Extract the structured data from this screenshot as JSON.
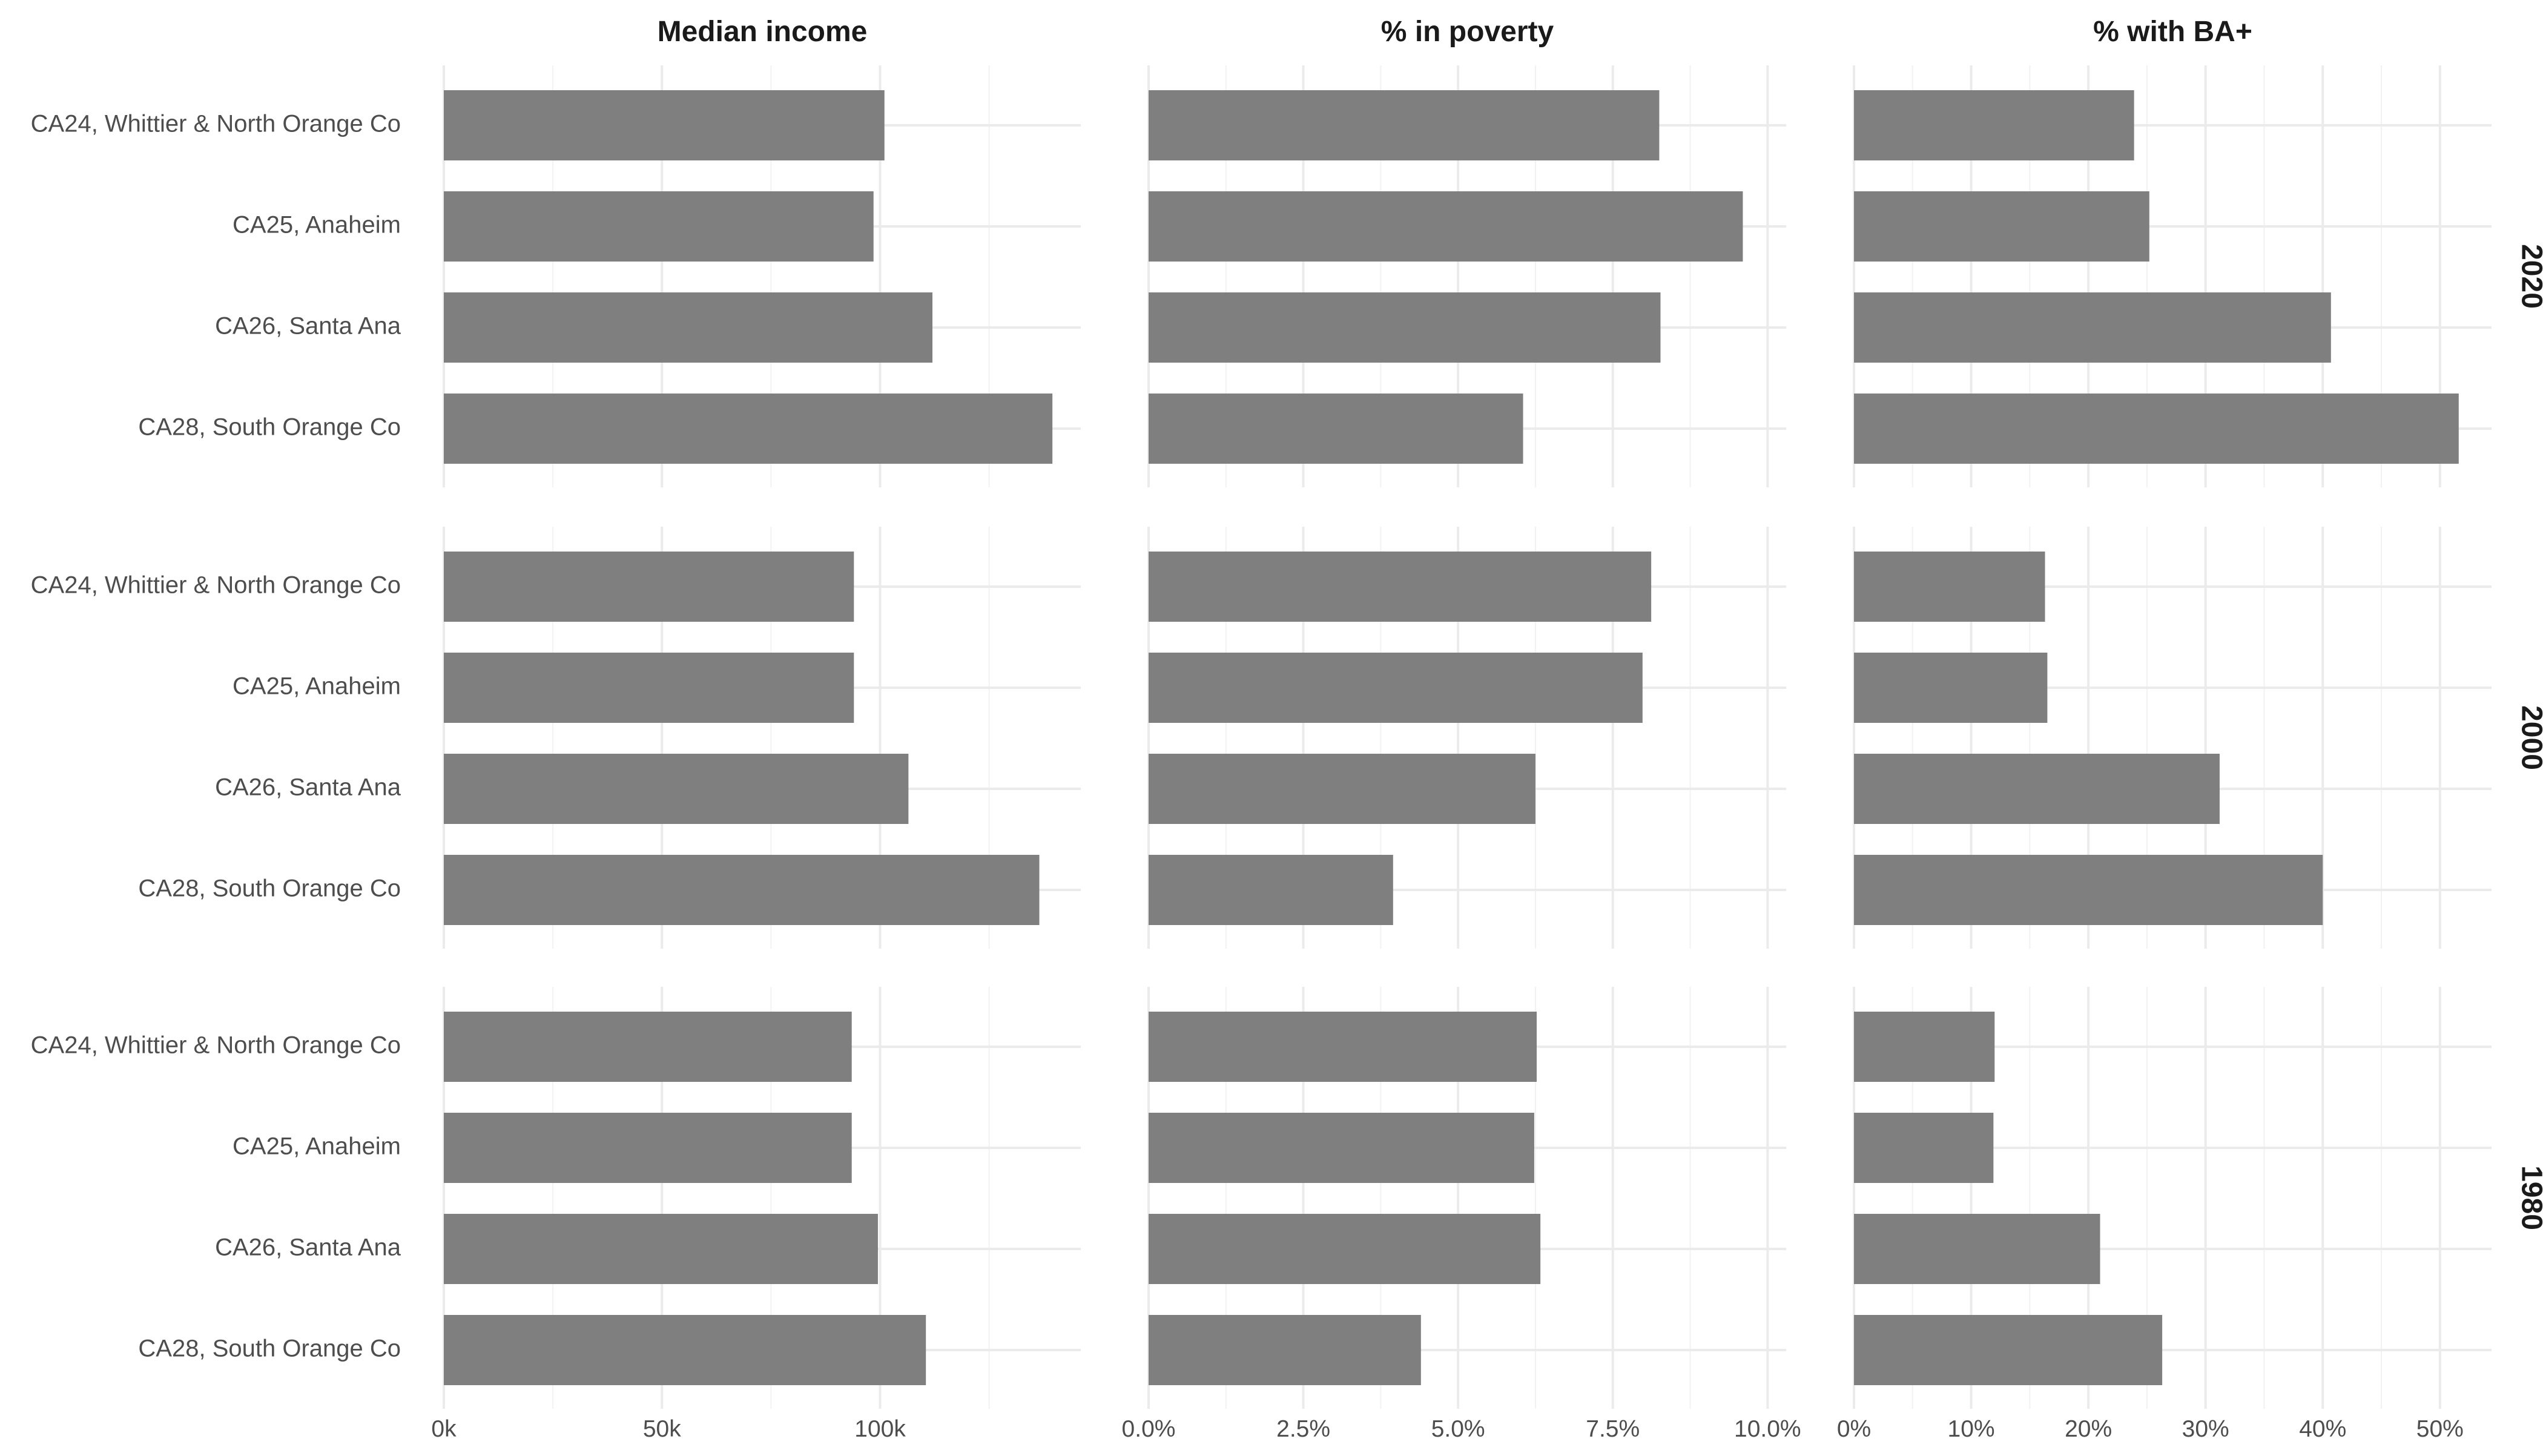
{
  "chart_data": {
    "type": "bar",
    "orientation": "horizontal",
    "facets": {
      "columns": [
        {
          "key": "income",
          "title": "Median income",
          "xlim": [
            0,
            146000
          ],
          "ticks": [
            0,
            50000,
            100000
          ],
          "tick_labels": [
            "0k",
            "50k",
            "100k"
          ]
        },
        {
          "key": "poverty",
          "title": "% in poverty",
          "xlim": [
            0,
            10.3
          ],
          "ticks": [
            0,
            2.5,
            5,
            7.5,
            10
          ],
          "tick_labels": [
            "0.0%",
            "2.5%",
            "5.0%",
            "7.5%",
            "10.0%"
          ]
        },
        {
          "key": "ba",
          "title": "% with BA+",
          "xlim": [
            0,
            54.4
          ],
          "ticks": [
            0,
            10,
            20,
            30,
            40,
            50
          ],
          "tick_labels": [
            "0%",
            "10%",
            "20%",
            "30%",
            "40%",
            "50%"
          ]
        }
      ],
      "rows": [
        "2020",
        "2000",
        "1980"
      ]
    },
    "categories": [
      "CA24, Whittier & North Orange Co",
      "CA25, Anaheim",
      "CA26, Santa Ana",
      "CA28, South Orange Co"
    ],
    "values": {
      "2020": {
        "income": [
          101000,
          98500,
          112000,
          139500
        ],
        "poverty": [
          8.25,
          9.6,
          8.27,
          6.05
        ],
        "ba": [
          23.9,
          25.2,
          40.7,
          51.6
        ]
      },
      "2000": {
        "income": [
          94000,
          94000,
          106500,
          136500
        ],
        "poverty": [
          8.12,
          7.98,
          6.25,
          3.95
        ],
        "ba": [
          16.3,
          16.5,
          31.2,
          40.0
        ]
      },
      "1980": {
        "income": [
          93500,
          93500,
          99500,
          110500
        ],
        "poverty": [
          6.27,
          6.23,
          6.33,
          4.4
        ],
        "ba": [
          12.0,
          11.9,
          21.0,
          26.3
        ]
      }
    },
    "grid": true,
    "legend": "none",
    "colors": {
      "bar": "#7f7f7f",
      "grid_major": "#ebebeb",
      "grid_minor": "#f2f2f2"
    }
  }
}
